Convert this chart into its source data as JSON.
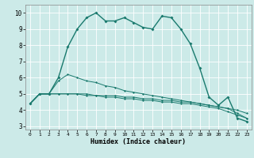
{
  "xlabel": "Humidex (Indice chaleur)",
  "bg_color": "#cceae8",
  "grid_color": "#ffffff",
  "line_color": "#1a7a6e",
  "xlim": [
    -0.5,
    23.5
  ],
  "ylim": [
    2.8,
    10.5
  ],
  "xticks": [
    0,
    1,
    2,
    3,
    4,
    5,
    6,
    7,
    8,
    9,
    10,
    11,
    12,
    13,
    14,
    15,
    16,
    17,
    18,
    19,
    20,
    21,
    22,
    23
  ],
  "yticks": [
    3,
    4,
    5,
    6,
    7,
    8,
    9,
    10
  ],
  "series": [
    [
      4.4,
      5.0,
      5.0,
      6.0,
      7.9,
      9.0,
      9.7,
      10.0,
      9.5,
      9.5,
      9.7,
      9.4,
      9.1,
      9.0,
      9.8,
      9.7,
      9.0,
      8.1,
      6.6,
      4.8,
      4.3,
      4.8,
      3.5,
      3.3
    ],
    [
      4.4,
      5.0,
      5.0,
      5.8,
      6.2,
      6.0,
      5.8,
      5.7,
      5.5,
      5.4,
      5.2,
      5.1,
      5.0,
      4.9,
      4.8,
      4.7,
      4.6,
      4.5,
      4.4,
      4.3,
      4.2,
      4.1,
      4.0,
      3.8
    ],
    [
      4.4,
      5.0,
      5.0,
      5.0,
      5.0,
      5.0,
      5.0,
      4.9,
      4.9,
      4.9,
      4.8,
      4.8,
      4.7,
      4.7,
      4.6,
      4.6,
      4.5,
      4.5,
      4.4,
      4.3,
      4.2,
      4.1,
      3.8,
      3.5
    ],
    [
      4.4,
      5.0,
      5.0,
      5.0,
      5.0,
      5.0,
      4.9,
      4.9,
      4.8,
      4.8,
      4.7,
      4.7,
      4.6,
      4.6,
      4.5,
      4.5,
      4.4,
      4.4,
      4.3,
      4.2,
      4.1,
      3.9,
      3.7,
      3.5
    ]
  ]
}
